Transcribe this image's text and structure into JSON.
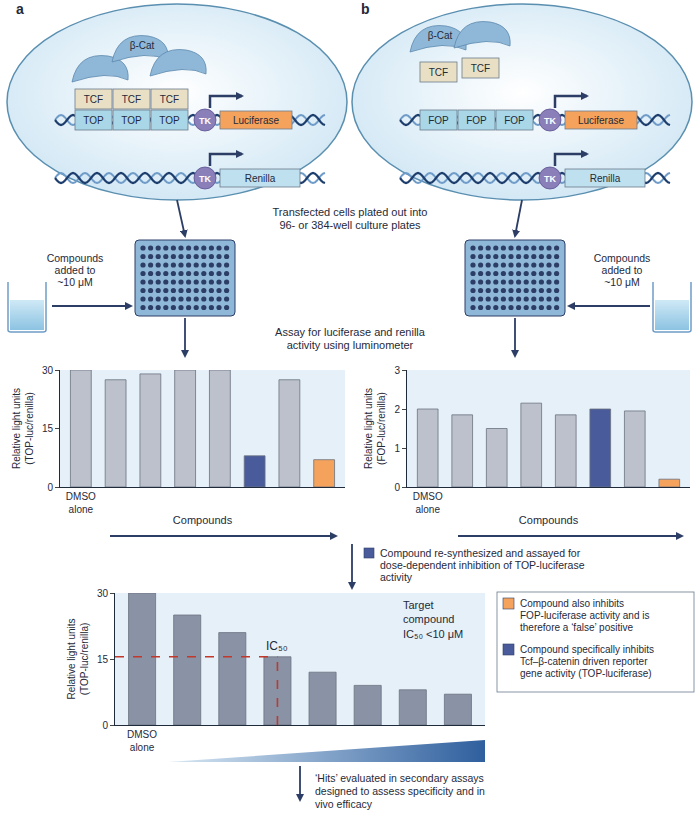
{
  "cells": [
    {
      "label": "a",
      "beta_cat": "β-Cat",
      "tcf": "TCF",
      "enhancer": "TOP",
      "promoter": "TK",
      "reporter": "Luciferase",
      "control_reporter": "Renilla"
    },
    {
      "label": "b",
      "beta_cat": "β-Cat",
      "tcf": "TCF",
      "enhancer": "FOP",
      "promoter": "TK",
      "reporter": "Luciferase",
      "control_reporter": "Renilla"
    }
  ],
  "steps": {
    "plating": "Transfected cells plated out into 96- or 384-well culture plates",
    "compounds": "Compounds added to ~10 μM",
    "assay": "Assay for luciferase and renilla activity using luminometer",
    "resynthesis": "Compound re-synthesized and assayed for dose-dependent inhibition of TOP-luciferase activity",
    "hits": "‘Hits’ evaluated in secondary assays designed to assess specificity and in vivo efficacy"
  },
  "legend": [
    {
      "text": "Compound also inhibits FOP-luciferase activity and is therefore a ‘false’ positive",
      "color": "#f5a35c"
    },
    {
      "text": "Compound specifically inhibits Tcf–β-catenin driven reporter gene activity (TOP-luciferase)",
      "color": "#4a5b9c"
    }
  ],
  "chart_data": [
    {
      "type": "bar",
      "ylabel": "Relative light units (TOP-luc/renilla)",
      "xlabel": "Compounds",
      "categories": [
        "DMSO alone",
        null,
        null,
        null,
        null,
        null,
        null,
        null
      ],
      "values": [
        30,
        27.5,
        29,
        30,
        30,
        8,
        27.5,
        7
      ],
      "colors": [
        "#bcc1cb",
        "#bcc1cb",
        "#bcc1cb",
        "#bcc1cb",
        "#bcc1cb",
        "#4a5b9c",
        "#bcc1cb",
        "#f5a35c"
      ],
      "ylim": [
        0,
        30
      ],
      "yticks": [
        0,
        15,
        30
      ],
      "grid": false
    },
    {
      "type": "bar",
      "ylabel": "Relative light units (FOP-luc/renilla)",
      "xlabel": "Compounds",
      "categories": [
        "DMSO alone",
        null,
        null,
        null,
        null,
        null,
        null,
        null
      ],
      "values": [
        2.0,
        1.85,
        1.5,
        2.15,
        1.85,
        2.0,
        1.95,
        0.2
      ],
      "colors": [
        "#bcc1cb",
        "#bcc1cb",
        "#bcc1cb",
        "#bcc1cb",
        "#bcc1cb",
        "#4a5b9c",
        "#bcc1cb",
        "#f5a35c"
      ],
      "ylim": [
        0,
        3
      ],
      "yticks": [
        0,
        1,
        2,
        3
      ],
      "grid": false
    },
    {
      "type": "bar",
      "ylabel": "Relative light units (TOP-luc/renilla)",
      "categories": [
        "DMSO alone",
        null,
        null,
        null,
        null,
        null,
        null,
        null
      ],
      "values": [
        30,
        25,
        21,
        15.5,
        12,
        9,
        8,
        7
      ],
      "color": "#8a93a6",
      "ylim": [
        0,
        30
      ],
      "yticks": [
        0,
        15,
        30
      ],
      "grid": false,
      "ic50": {
        "label": "IC₅₀",
        "value": 15.5
      },
      "annotation": "Target compound IC₅₀ <10 μM"
    }
  ]
}
